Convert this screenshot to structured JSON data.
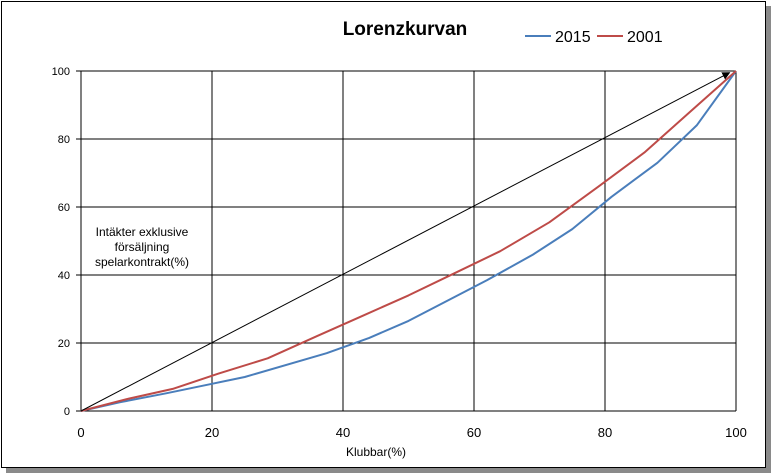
{
  "chart_data": {
    "type": "line",
    "title": "Lorenzkurvan",
    "xlabel": "Klubbar(%)",
    "ylabel": "Intäkter exklusive försäljning spelarkontrakt(%)",
    "ylabel_lines": [
      "Intäkter exklusive",
      "försäljning",
      "spelarkontrakt(%)"
    ],
    "xlim": [
      0,
      100
    ],
    "ylim": [
      0,
      100
    ],
    "x_ticks": [
      0,
      20,
      40,
      60,
      80,
      100
    ],
    "y_ticks": [
      0,
      20,
      40,
      60,
      80,
      100
    ],
    "grid": true,
    "legend_position": "top-right",
    "series": [
      {
        "name": "2015",
        "color": "#4a7ebb",
        "x": [
          0,
          6,
          13,
          20,
          25,
          37.5,
          44,
          50,
          56,
          62,
          69,
          75,
          81,
          88,
          94,
          100
        ],
        "y": [
          0,
          2.6,
          5.2,
          8,
          10,
          17,
          21.5,
          26.5,
          32.5,
          38.5,
          46,
          53.5,
          63,
          73,
          84,
          100
        ]
      },
      {
        "name": "2001",
        "color": "#be4b48",
        "x": [
          0,
          7,
          14,
          21,
          28.5,
          36,
          43,
          50,
          57,
          64,
          71.5,
          79,
          86,
          93,
          100
        ],
        "y": [
          0,
          3.5,
          6.5,
          11,
          15.5,
          22,
          28,
          34,
          40.5,
          47,
          55.5,
          66,
          76,
          88,
          100
        ]
      },
      {
        "name": "",
        "color": "#000000",
        "x": [
          0,
          99
        ],
        "y": [
          0,
          99.5
        ]
      }
    ]
  }
}
